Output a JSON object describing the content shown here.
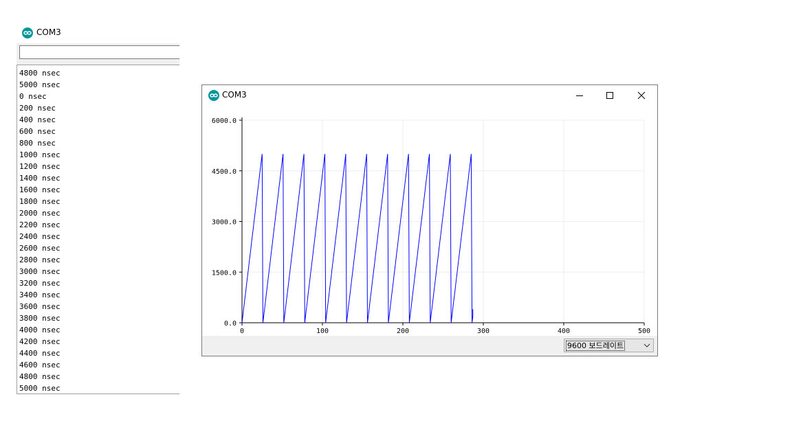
{
  "colors": {
    "icon_teal": "#00979c",
    "trace": "#0000ff",
    "grid": "#eeeeee"
  },
  "serial_monitor": {
    "title": "COM3",
    "icon": "arduino-infinity-icon",
    "send_input_value": "",
    "lines": [
      "4800 nsec",
      "5000 nsec",
      "0 nsec",
      "200 nsec",
      "400 nsec",
      "600 nsec",
      "800 nsec",
      "1000 nsec",
      "1200 nsec",
      "1400 nsec",
      "1600 nsec",
      "1800 nsec",
      "2000 nsec",
      "2200 nsec",
      "2400 nsec",
      "2600 nsec",
      "2800 nsec",
      "3000 nsec",
      "3200 nsec",
      "3400 nsec",
      "3600 nsec",
      "3800 nsec",
      "4000 nsec",
      "4200 nsec",
      "4400 nsec",
      "4600 nsec",
      "4800 nsec",
      "5000 nsec"
    ]
  },
  "serial_plotter": {
    "title": "COM3",
    "icon": "arduino-infinity-icon",
    "window_controls": [
      "minimize-icon",
      "maximize-icon",
      "close-icon"
    ],
    "baud_rate_label": "9600 보드레이트",
    "chart_data": {
      "type": "line",
      "title": "",
      "xlabel": "",
      "ylabel": "",
      "xlim": [
        0,
        500
      ],
      "ylim": [
        0,
        6000
      ],
      "x_ticks": [
        "0",
        "100",
        "200",
        "300",
        "400",
        "500"
      ],
      "y_ticks": [
        "0.0",
        "1500.0",
        "3000.0",
        "4500.0",
        "6000.0"
      ],
      "grid": true,
      "series": [
        {
          "pattern": "sawtooth",
          "step": 200,
          "min": 0,
          "max": 5000,
          "samples_per_period": 26,
          "x_start": 0,
          "x_end": 287,
          "last_value": 400
        }
      ]
    }
  }
}
